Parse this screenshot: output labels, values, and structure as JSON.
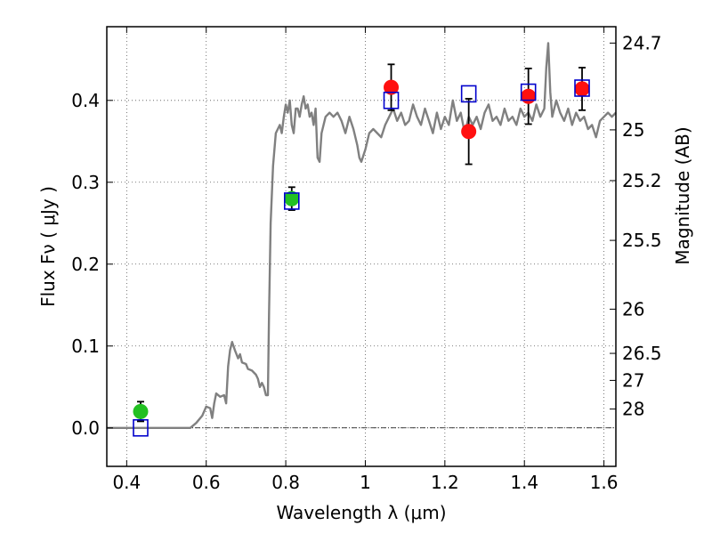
{
  "chart_data": {
    "type": "scatter",
    "xlabel": "Wavelength  λ (μm)",
    "ylabel": "Flux  Fν  ( μJy )",
    "y2label": "Magnitude (AB)",
    "xlim": [
      0.35,
      1.63
    ],
    "ylim": [
      -0.047,
      0.49
    ],
    "x_ticks": [
      0.4,
      0.6,
      0.8,
      1.0,
      1.2,
      1.4,
      1.6
    ],
    "x_tick_labels": [
      "0.4",
      "0.6",
      "0.8",
      "1",
      "1.2",
      "1.4",
      "1.6"
    ],
    "y_ticks": [
      0.0,
      0.1,
      0.2,
      0.3,
      0.4
    ],
    "y_tick_labels": [
      "0.0",
      "0.1",
      "0.2",
      "0.3",
      "0.4"
    ],
    "grid": true,
    "reference_line_y": 0.0,
    "right_axis_ticks": [
      {
        "label": "24.7",
        "flux": 0.47
      },
      {
        "label": "25",
        "flux": 0.364
      },
      {
        "label": "25.2",
        "flux": 0.302
      },
      {
        "label": "25.5",
        "flux": 0.229
      },
      {
        "label": "26",
        "flux": 0.145
      },
      {
        "label": "26.5",
        "flux": 0.091
      },
      {
        "label": "27",
        "flux": 0.058
      },
      {
        "label": "28",
        "flux": 0.023
      }
    ],
    "colors": {
      "model": "#808080",
      "green_points": "#22c022",
      "red_points": "#ff1010",
      "squares": "#0000cc",
      "errorbars": "#000000",
      "grid": "#555555"
    },
    "series": [
      {
        "kind": "line",
        "points": [
          [
            0.35,
            0.0
          ],
          [
            0.56,
            0.0
          ],
          [
            0.575,
            0.006
          ],
          [
            0.59,
            0.015
          ],
          [
            0.6,
            0.026
          ],
          [
            0.61,
            0.024
          ],
          [
            0.615,
            0.012
          ],
          [
            0.62,
            0.03
          ],
          [
            0.625,
            0.042
          ],
          [
            0.635,
            0.038
          ],
          [
            0.645,
            0.04
          ],
          [
            0.65,
            0.03
          ],
          [
            0.655,
            0.075
          ],
          [
            0.66,
            0.095
          ],
          [
            0.665,
            0.105
          ],
          [
            0.672,
            0.095
          ],
          [
            0.68,
            0.085
          ],
          [
            0.685,
            0.09
          ],
          [
            0.69,
            0.08
          ],
          [
            0.7,
            0.078
          ],
          [
            0.705,
            0.072
          ],
          [
            0.715,
            0.07
          ],
          [
            0.725,
            0.065
          ],
          [
            0.73,
            0.06
          ],
          [
            0.735,
            0.05
          ],
          [
            0.74,
            0.055
          ],
          [
            0.745,
            0.05
          ],
          [
            0.75,
            0.04
          ],
          [
            0.755,
            0.04
          ],
          [
            0.758,
            0.14
          ],
          [
            0.762,
            0.25
          ],
          [
            0.768,
            0.32
          ],
          [
            0.775,
            0.36
          ],
          [
            0.785,
            0.37
          ],
          [
            0.79,
            0.36
          ],
          [
            0.795,
            0.38
          ],
          [
            0.8,
            0.395
          ],
          [
            0.805,
            0.385
          ],
          [
            0.81,
            0.4
          ],
          [
            0.815,
            0.37
          ],
          [
            0.82,
            0.36
          ],
          [
            0.825,
            0.39
          ],
          [
            0.83,
            0.39
          ],
          [
            0.835,
            0.38
          ],
          [
            0.84,
            0.395
          ],
          [
            0.845,
            0.405
          ],
          [
            0.85,
            0.39
          ],
          [
            0.855,
            0.395
          ],
          [
            0.86,
            0.38
          ],
          [
            0.865,
            0.385
          ],
          [
            0.87,
            0.37
          ],
          [
            0.875,
            0.39
          ],
          [
            0.88,
            0.33
          ],
          [
            0.885,
            0.325
          ],
          [
            0.89,
            0.36
          ],
          [
            0.9,
            0.38
          ],
          [
            0.91,
            0.385
          ],
          [
            0.92,
            0.38
          ],
          [
            0.93,
            0.385
          ],
          [
            0.94,
            0.375
          ],
          [
            0.95,
            0.36
          ],
          [
            0.96,
            0.38
          ],
          [
            0.97,
            0.365
          ],
          [
            0.98,
            0.345
          ],
          [
            0.985,
            0.33
          ],
          [
            0.99,
            0.325
          ],
          [
            1.0,
            0.34
          ],
          [
            1.01,
            0.36
          ],
          [
            1.02,
            0.365
          ],
          [
            1.03,
            0.36
          ],
          [
            1.04,
            0.355
          ],
          [
            1.05,
            0.37
          ],
          [
            1.06,
            0.38
          ],
          [
            1.07,
            0.39
          ],
          [
            1.08,
            0.375
          ],
          [
            1.09,
            0.385
          ],
          [
            1.1,
            0.37
          ],
          [
            1.11,
            0.375
          ],
          [
            1.12,
            0.395
          ],
          [
            1.13,
            0.38
          ],
          [
            1.14,
            0.37
          ],
          [
            1.15,
            0.39
          ],
          [
            1.16,
            0.375
          ],
          [
            1.17,
            0.36
          ],
          [
            1.18,
            0.385
          ],
          [
            1.19,
            0.365
          ],
          [
            1.2,
            0.38
          ],
          [
            1.21,
            0.37
          ],
          [
            1.22,
            0.4
          ],
          [
            1.23,
            0.375
          ],
          [
            1.24,
            0.385
          ],
          [
            1.25,
            0.36
          ],
          [
            1.26,
            0.38
          ],
          [
            1.27,
            0.37
          ],
          [
            1.28,
            0.38
          ],
          [
            1.29,
            0.365
          ],
          [
            1.3,
            0.385
          ],
          [
            1.31,
            0.395
          ],
          [
            1.32,
            0.375
          ],
          [
            1.33,
            0.38
          ],
          [
            1.34,
            0.37
          ],
          [
            1.35,
            0.39
          ],
          [
            1.36,
            0.375
          ],
          [
            1.37,
            0.38
          ],
          [
            1.38,
            0.37
          ],
          [
            1.39,
            0.39
          ],
          [
            1.4,
            0.38
          ],
          [
            1.41,
            0.385
          ],
          [
            1.42,
            0.375
          ],
          [
            1.43,
            0.395
          ],
          [
            1.44,
            0.38
          ],
          [
            1.45,
            0.39
          ],
          [
            1.455,
            0.44
          ],
          [
            1.46,
            0.47
          ],
          [
            1.465,
            0.41
          ],
          [
            1.47,
            0.38
          ],
          [
            1.48,
            0.4
          ],
          [
            1.49,
            0.385
          ],
          [
            1.5,
            0.375
          ],
          [
            1.51,
            0.39
          ],
          [
            1.52,
            0.37
          ],
          [
            1.53,
            0.385
          ],
          [
            1.54,
            0.375
          ],
          [
            1.55,
            0.38
          ],
          [
            1.56,
            0.365
          ],
          [
            1.57,
            0.37
          ],
          [
            1.58,
            0.355
          ],
          [
            1.59,
            0.375
          ],
          [
            1.6,
            0.38
          ],
          [
            1.61,
            0.385
          ],
          [
            1.62,
            0.38
          ],
          [
            1.63,
            0.385
          ]
        ]
      },
      {
        "kind": "points",
        "marker": "circle",
        "color": "green",
        "points": [
          {
            "x": 0.435,
            "y": 0.02,
            "yerr": 0.012
          },
          {
            "x": 0.815,
            "y": 0.28,
            "yerr": 0.014
          }
        ]
      },
      {
        "kind": "points",
        "marker": "circle",
        "color": "red",
        "points": [
          {
            "x": 1.065,
            "y": 0.416,
            "yerr": 0.028
          },
          {
            "x": 1.26,
            "y": 0.362,
            "yerr": 0.04
          },
          {
            "x": 1.41,
            "y": 0.405,
            "yerr": 0.034
          },
          {
            "x": 1.545,
            "y": 0.414,
            "yerr": 0.026
          }
        ]
      },
      {
        "kind": "points",
        "marker": "open-square",
        "color": "blue",
        "points": [
          {
            "x": 0.435,
            "y": 0.0
          },
          {
            "x": 0.815,
            "y": 0.277
          },
          {
            "x": 1.065,
            "y": 0.4
          },
          {
            "x": 1.26,
            "y": 0.408
          },
          {
            "x": 1.41,
            "y": 0.41
          },
          {
            "x": 1.545,
            "y": 0.415
          }
        ]
      }
    ]
  }
}
